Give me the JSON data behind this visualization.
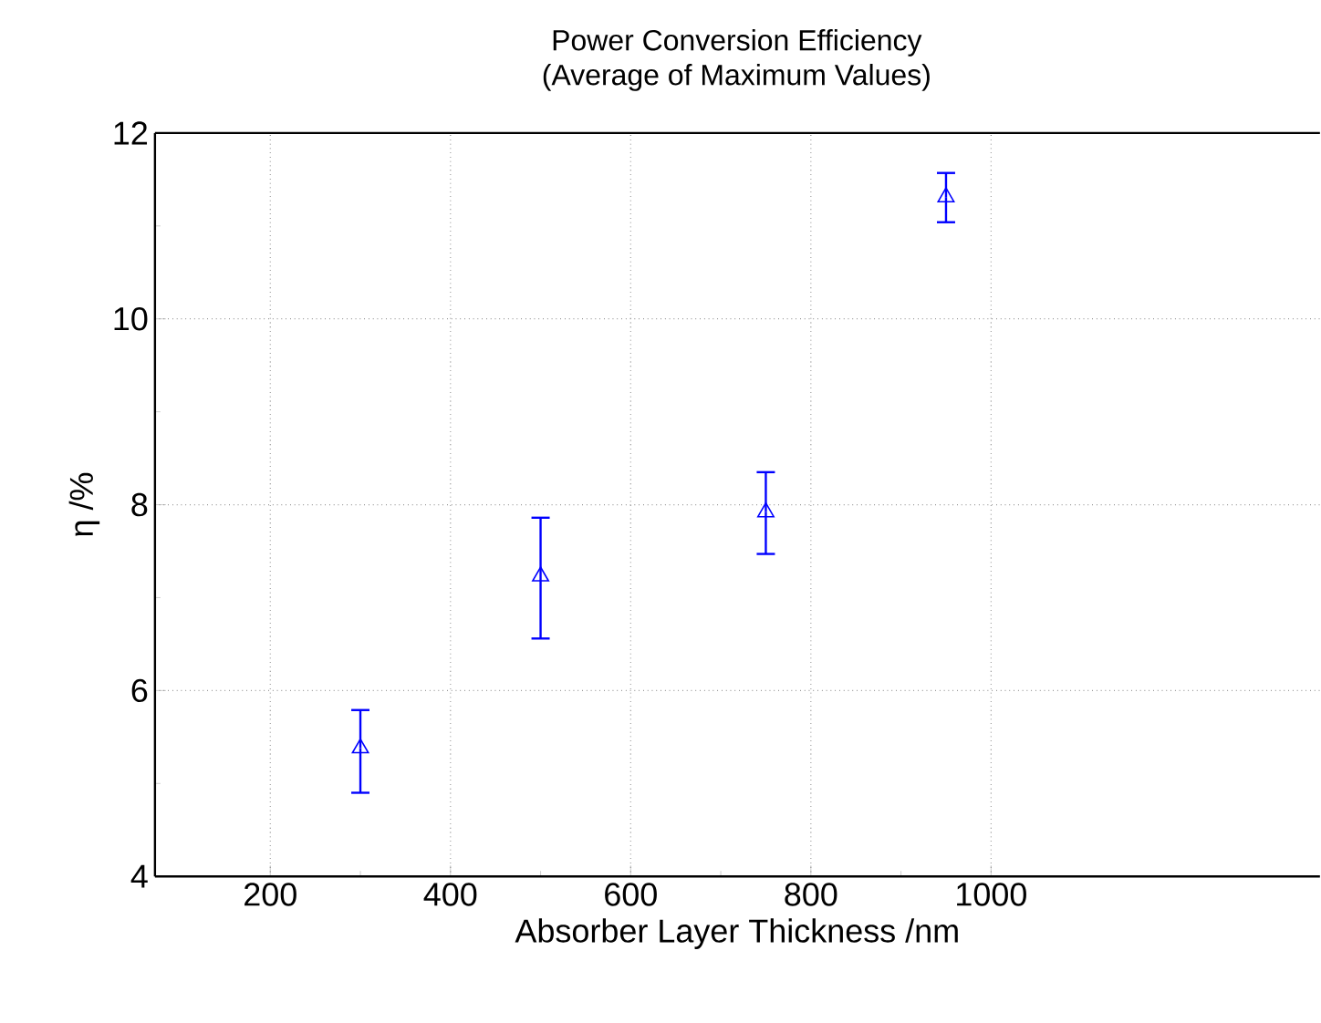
{
  "chart_data": {
    "type": "scatter",
    "title": "Power Conversion Efficiency",
    "subtitle": "(Average of Maximum Values)",
    "xlabel": "Absorber Layer Thickness /nm",
    "ylabel": "η /%",
    "x": [
      300,
      500,
      750,
      950
    ],
    "values": [
      5.38,
      7.23,
      7.92,
      11.31
    ],
    "errors": [
      [
        4.9,
        5.79
      ],
      [
        6.56,
        7.86
      ],
      [
        7.47,
        8.35
      ],
      [
        11.04,
        11.57
      ]
    ],
    "color": "#0000ff",
    "marker": "triangle",
    "grid": true,
    "xlim": [
      72,
      1365
    ],
    "xticks": [
      200,
      400,
      600,
      800,
      1000
    ],
    "ylim": [
      4,
      12
    ],
    "yticks": [
      4,
      6,
      8,
      10,
      12
    ]
  }
}
